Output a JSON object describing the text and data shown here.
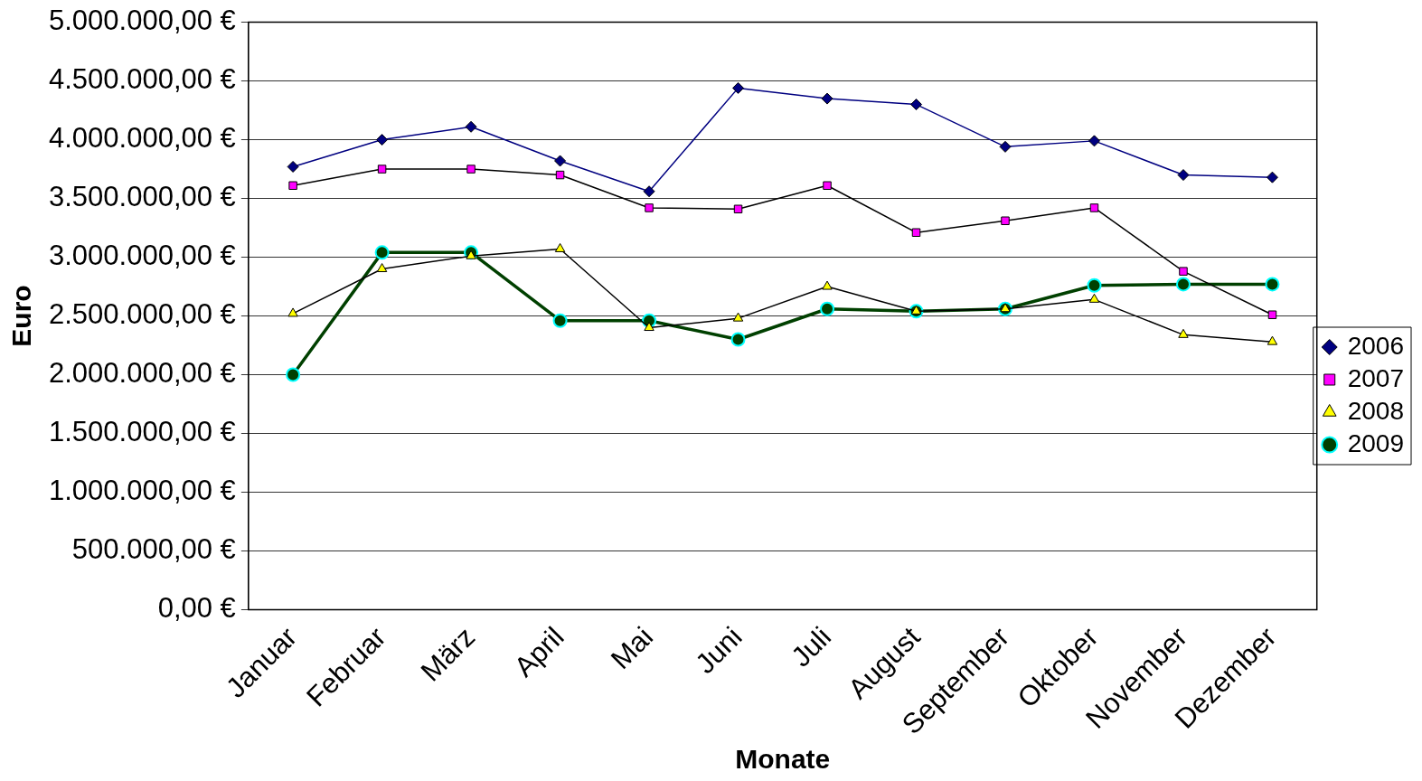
{
  "chart_data": {
    "type": "line",
    "xlabel": "Monate",
    "ylabel": "Euro",
    "categories": [
      "Januar",
      "Februar",
      "März",
      "April",
      "Mai",
      "Juni",
      "Juli",
      "August",
      "September",
      "Oktober",
      "November",
      "Dezember"
    ],
    "series": [
      {
        "name": "2006",
        "color": "#000080",
        "marker": "diamond",
        "values": [
          3770000,
          4000000,
          4110000,
          3820000,
          3560000,
          4440000,
          4350000,
          4300000,
          3940000,
          3990000,
          3700000,
          3680000
        ]
      },
      {
        "name": "2007",
        "color": "#ff00ff",
        "marker": "square",
        "values": [
          3610000,
          3750000,
          3750000,
          3700000,
          3420000,
          3410000,
          3610000,
          3210000,
          3310000,
          3420000,
          2880000,
          2510000
        ]
      },
      {
        "name": "2008",
        "color": "#ffff00",
        "marker": "triangle",
        "values": [
          2520000,
          2900000,
          3010000,
          3070000,
          2400000,
          2480000,
          2750000,
          2540000,
          2560000,
          2640000,
          2340000,
          2280000
        ]
      },
      {
        "name": "2009",
        "color": "#004000",
        "marker": "circle",
        "values": [
          2000000,
          3040000,
          3040000,
          2460000,
          2460000,
          2300000,
          2560000,
          2540000,
          2560000,
          2760000,
          2770000,
          2770000
        ]
      }
    ],
    "ylim": [
      0,
      5000000
    ],
    "yticks": [
      {
        "value": 0,
        "label": "0,00 €"
      },
      {
        "value": 500000,
        "label": "500.000,00 €"
      },
      {
        "value": 1000000,
        "label": "1.000.000,00 €"
      },
      {
        "value": 1500000,
        "label": "1.500.000,00 €"
      },
      {
        "value": 2000000,
        "label": "2.000.000,00 €"
      },
      {
        "value": 2500000,
        "label": "2.500.000,00 €"
      },
      {
        "value": 3000000,
        "label": "3.000.000,00 €"
      },
      {
        "value": 3500000,
        "label": "3.500.000,00 €"
      },
      {
        "value": 4000000,
        "label": "4.000.000,00 €"
      },
      {
        "value": 4500000,
        "label": "4.500.000,00 €"
      },
      {
        "value": 5000000,
        "label": "5.000.000,00 €"
      }
    ],
    "grid": "y",
    "legend": "right"
  }
}
